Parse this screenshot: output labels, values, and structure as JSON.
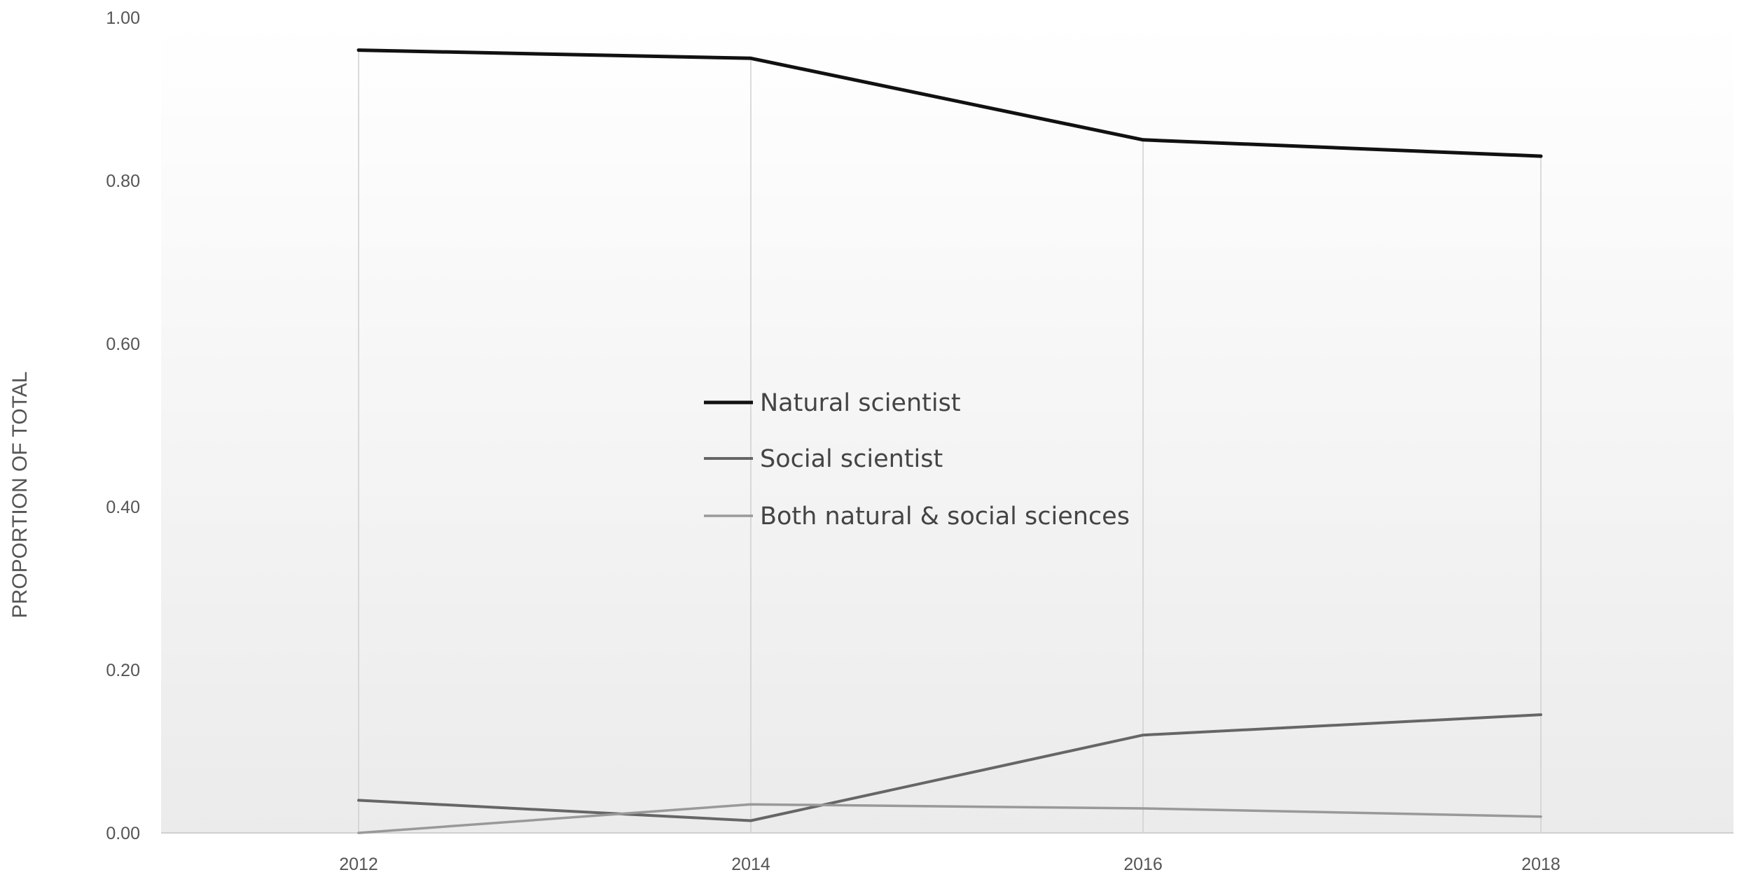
{
  "chart_data": {
    "type": "line",
    "title": "",
    "xlabel": "",
    "ylabel": "PROPORTION OF TOTAL",
    "x": [
      "2012",
      "2014",
      "2016",
      "2018"
    ],
    "ylim": [
      0,
      1
    ],
    "y_ticks": [
      "0.00",
      "0.20",
      "0.40",
      "0.60",
      "0.80",
      "1.00"
    ],
    "grid": "vertical lines at each year",
    "legend_position": "center",
    "series": [
      {
        "name": "Natural scientist",
        "values": [
          0.96,
          0.95,
          0.85,
          0.83
        ],
        "color": "#111111"
      },
      {
        "name": "Social scientist",
        "values": [
          0.04,
          0.015,
          0.12,
          0.145
        ],
        "color": "#666666"
      },
      {
        "name": "Both natural & social sciences",
        "values": [
          0.0,
          0.035,
          0.03,
          0.02
        ],
        "color": "#999999"
      }
    ]
  }
}
